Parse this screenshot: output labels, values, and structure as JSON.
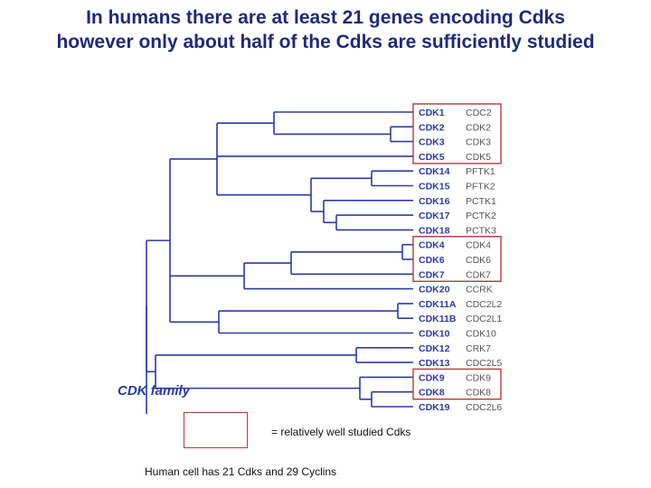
{
  "slide": {
    "title_line1": "In humans there are at least 21 genes encoding Cdks",
    "title_line2": "however only about half of the Cdks are sufficiently studied",
    "legend_text": "= relatively well studied Cdks",
    "footnote": "Human cell has 21 Cdks and 29 Cyclins"
  },
  "tree": {
    "family_label": "CDK family",
    "line_color": "#2b3aa8",
    "label_color": "#2b3aa8",
    "alias_color": "#555555",
    "highlight_color": "#b83a3a",
    "rows": [
      {
        "name": "CDK1",
        "alias": "CDC2"
      },
      {
        "name": "CDK2",
        "alias": "CDK2"
      },
      {
        "name": "CDK3",
        "alias": "CDK3"
      },
      {
        "name": "CDK5",
        "alias": "CDK5"
      },
      {
        "name": "CDK14",
        "alias": "PFTK1"
      },
      {
        "name": "CDK15",
        "alias": "PFTK2"
      },
      {
        "name": "CDK16",
        "alias": "PCTK1"
      },
      {
        "name": "CDK17",
        "alias": "PCTK2"
      },
      {
        "name": "CDK18",
        "alias": "PCTK3"
      },
      {
        "name": "CDK4",
        "alias": "CDK4"
      },
      {
        "name": "CDK6",
        "alias": "CDK6"
      },
      {
        "name": "CDK7",
        "alias": "CDK7"
      },
      {
        "name": "CDK20",
        "alias": "CCRK"
      },
      {
        "name": "CDK11A",
        "alias": "CDC2L2"
      },
      {
        "name": "CDK11B",
        "alias": "CDC2L1"
      },
      {
        "name": "CDK10",
        "alias": "CDK10"
      },
      {
        "name": "CDK12",
        "alias": "CRK7"
      },
      {
        "name": "CDK13",
        "alias": "CDC2L5"
      },
      {
        "name": "CDK9",
        "alias": "CDK9"
      },
      {
        "name": "CDK8",
        "alias": "CDK8"
      },
      {
        "name": "CDK19",
        "alias": "CDC2L6"
      }
    ],
    "highlight_groups": [
      {
        "from_row": 0,
        "to_row": 3
      },
      {
        "from_row": 9,
        "to_row": 11
      },
      {
        "from_row": 18,
        "to_row": 19
      }
    ]
  }
}
